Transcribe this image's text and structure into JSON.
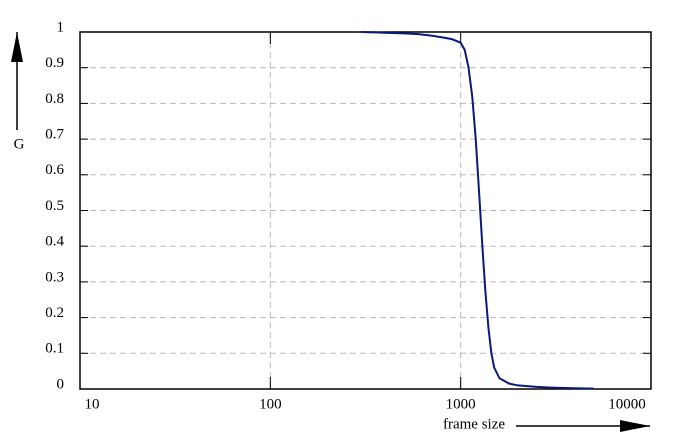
{
  "chart_data": {
    "type": "line",
    "log_x": true,
    "grid": true,
    "xlabel": "frame size",
    "ylabel": "G",
    "xlim": [
      10,
      10000
    ],
    "xticks": [
      10,
      100,
      1000,
      10000
    ],
    "ylim": [
      0,
      1
    ],
    "yticks": [
      0,
      0.1,
      0.2,
      0.3,
      0.4,
      0.5,
      0.6,
      0.7,
      0.8,
      0.9,
      1
    ],
    "series": [
      {
        "color": "#0a1a7a",
        "x": [
          300,
          400,
          500,
          600,
          700,
          800,
          900,
          1000,
          1050,
          1100,
          1150,
          1200,
          1250,
          1300,
          1350,
          1400,
          1450,
          1500,
          1600,
          1800,
          2000,
          2500,
          3000,
          4000,
          5000
        ],
        "values": [
          1,
          0.998,
          0.996,
          0.994,
          0.99,
          0.985,
          0.98,
          0.97,
          0.95,
          0.9,
          0.82,
          0.7,
          0.55,
          0.4,
          0.27,
          0.17,
          0.1,
          0.06,
          0.03,
          0.015,
          0.01,
          0.006,
          0.004,
          0.002,
          0.001
        ]
      }
    ]
  }
}
